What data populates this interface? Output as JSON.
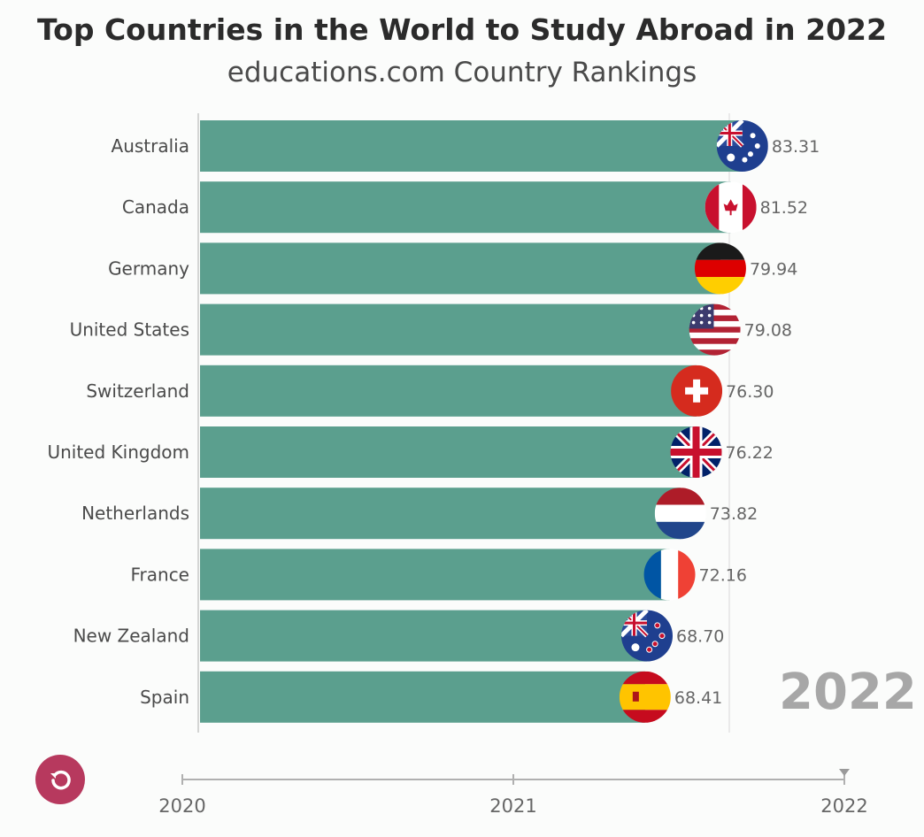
{
  "header": {
    "title": "Top Countries in the World to Study Abroad in 2022",
    "subtitle": "educations.com Country Rankings"
  },
  "year_stamp": "2022",
  "controls": {
    "replay_icon": "replay-icon"
  },
  "colors": {
    "bar": "#5b9f8e",
    "accent": "#b7395e",
    "stamp": "#a7a7a7"
  },
  "chart_data": {
    "type": "bar",
    "orientation": "horizontal",
    "categories": [
      "Australia",
      "Canada",
      "Germany",
      "United States",
      "Switzerland",
      "United Kingdom",
      "Netherlands",
      "France",
      "New Zealand",
      "Spain"
    ],
    "values": [
      83.31,
      81.52,
      79.94,
      79.08,
      76.3,
      76.22,
      73.82,
      72.16,
      68.7,
      68.41
    ],
    "value_labels": [
      "83.31",
      "81.52",
      "79.94",
      "79.08",
      "76.30",
      "76.22",
      "73.82",
      "72.16",
      "68.70",
      "68.41"
    ],
    "flags": [
      "australia-flag",
      "canada-flag",
      "germany-flag",
      "united-states-flag",
      "switzerland-flag",
      "united-kingdom-flag",
      "netherlands-flag",
      "france-flag",
      "new-zealand-flag",
      "spain-flag"
    ],
    "timeline": {
      "ticks": [
        "2020",
        "2021",
        "2022"
      ],
      "current": "2022"
    },
    "title": "Top Countries in the World to Study Abroad in 2022",
    "subtitle": "educations.com Country Rankings",
    "grid": false
  }
}
